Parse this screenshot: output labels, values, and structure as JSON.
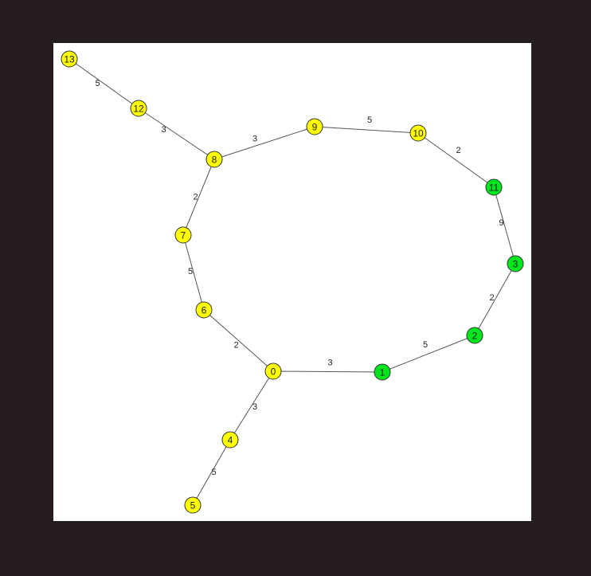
{
  "colors": {
    "backdrop": "#241c1e",
    "canvas": "#ffffff",
    "unvisited": "#ffff00",
    "visited": "#00e61e",
    "edge": "#555555"
  },
  "graph": {
    "nodes": [
      {
        "id": "0",
        "state": "unvisited"
      },
      {
        "id": "1",
        "state": "visited"
      },
      {
        "id": "2",
        "state": "visited"
      },
      {
        "id": "3",
        "state": "visited"
      },
      {
        "id": "4",
        "state": "unvisited"
      },
      {
        "id": "5",
        "state": "unvisited"
      },
      {
        "id": "6",
        "state": "unvisited"
      },
      {
        "id": "7",
        "state": "unvisited"
      },
      {
        "id": "8",
        "state": "unvisited"
      },
      {
        "id": "9",
        "state": "unvisited"
      },
      {
        "id": "10",
        "state": "unvisited"
      },
      {
        "id": "11",
        "state": "visited"
      },
      {
        "id": "12",
        "state": "unvisited"
      },
      {
        "id": "13",
        "state": "unvisited"
      }
    ],
    "edges": [
      {
        "from": "13",
        "to": "12",
        "weight": "5"
      },
      {
        "from": "12",
        "to": "8",
        "weight": "3"
      },
      {
        "from": "8",
        "to": "9",
        "weight": "3"
      },
      {
        "from": "9",
        "to": "10",
        "weight": "5"
      },
      {
        "from": "10",
        "to": "11",
        "weight": "2"
      },
      {
        "from": "11",
        "to": "3",
        "weight": "9"
      },
      {
        "from": "3",
        "to": "2",
        "weight": "2"
      },
      {
        "from": "2",
        "to": "1",
        "weight": "5"
      },
      {
        "from": "1",
        "to": "0",
        "weight": "3"
      },
      {
        "from": "0",
        "to": "6",
        "weight": "2"
      },
      {
        "from": "6",
        "to": "7",
        "weight": "5"
      },
      {
        "from": "7",
        "to": "8",
        "weight": "2"
      },
      {
        "from": "0",
        "to": "4",
        "weight": "3"
      },
      {
        "from": "4",
        "to": "5",
        "weight": "5"
      }
    ]
  }
}
